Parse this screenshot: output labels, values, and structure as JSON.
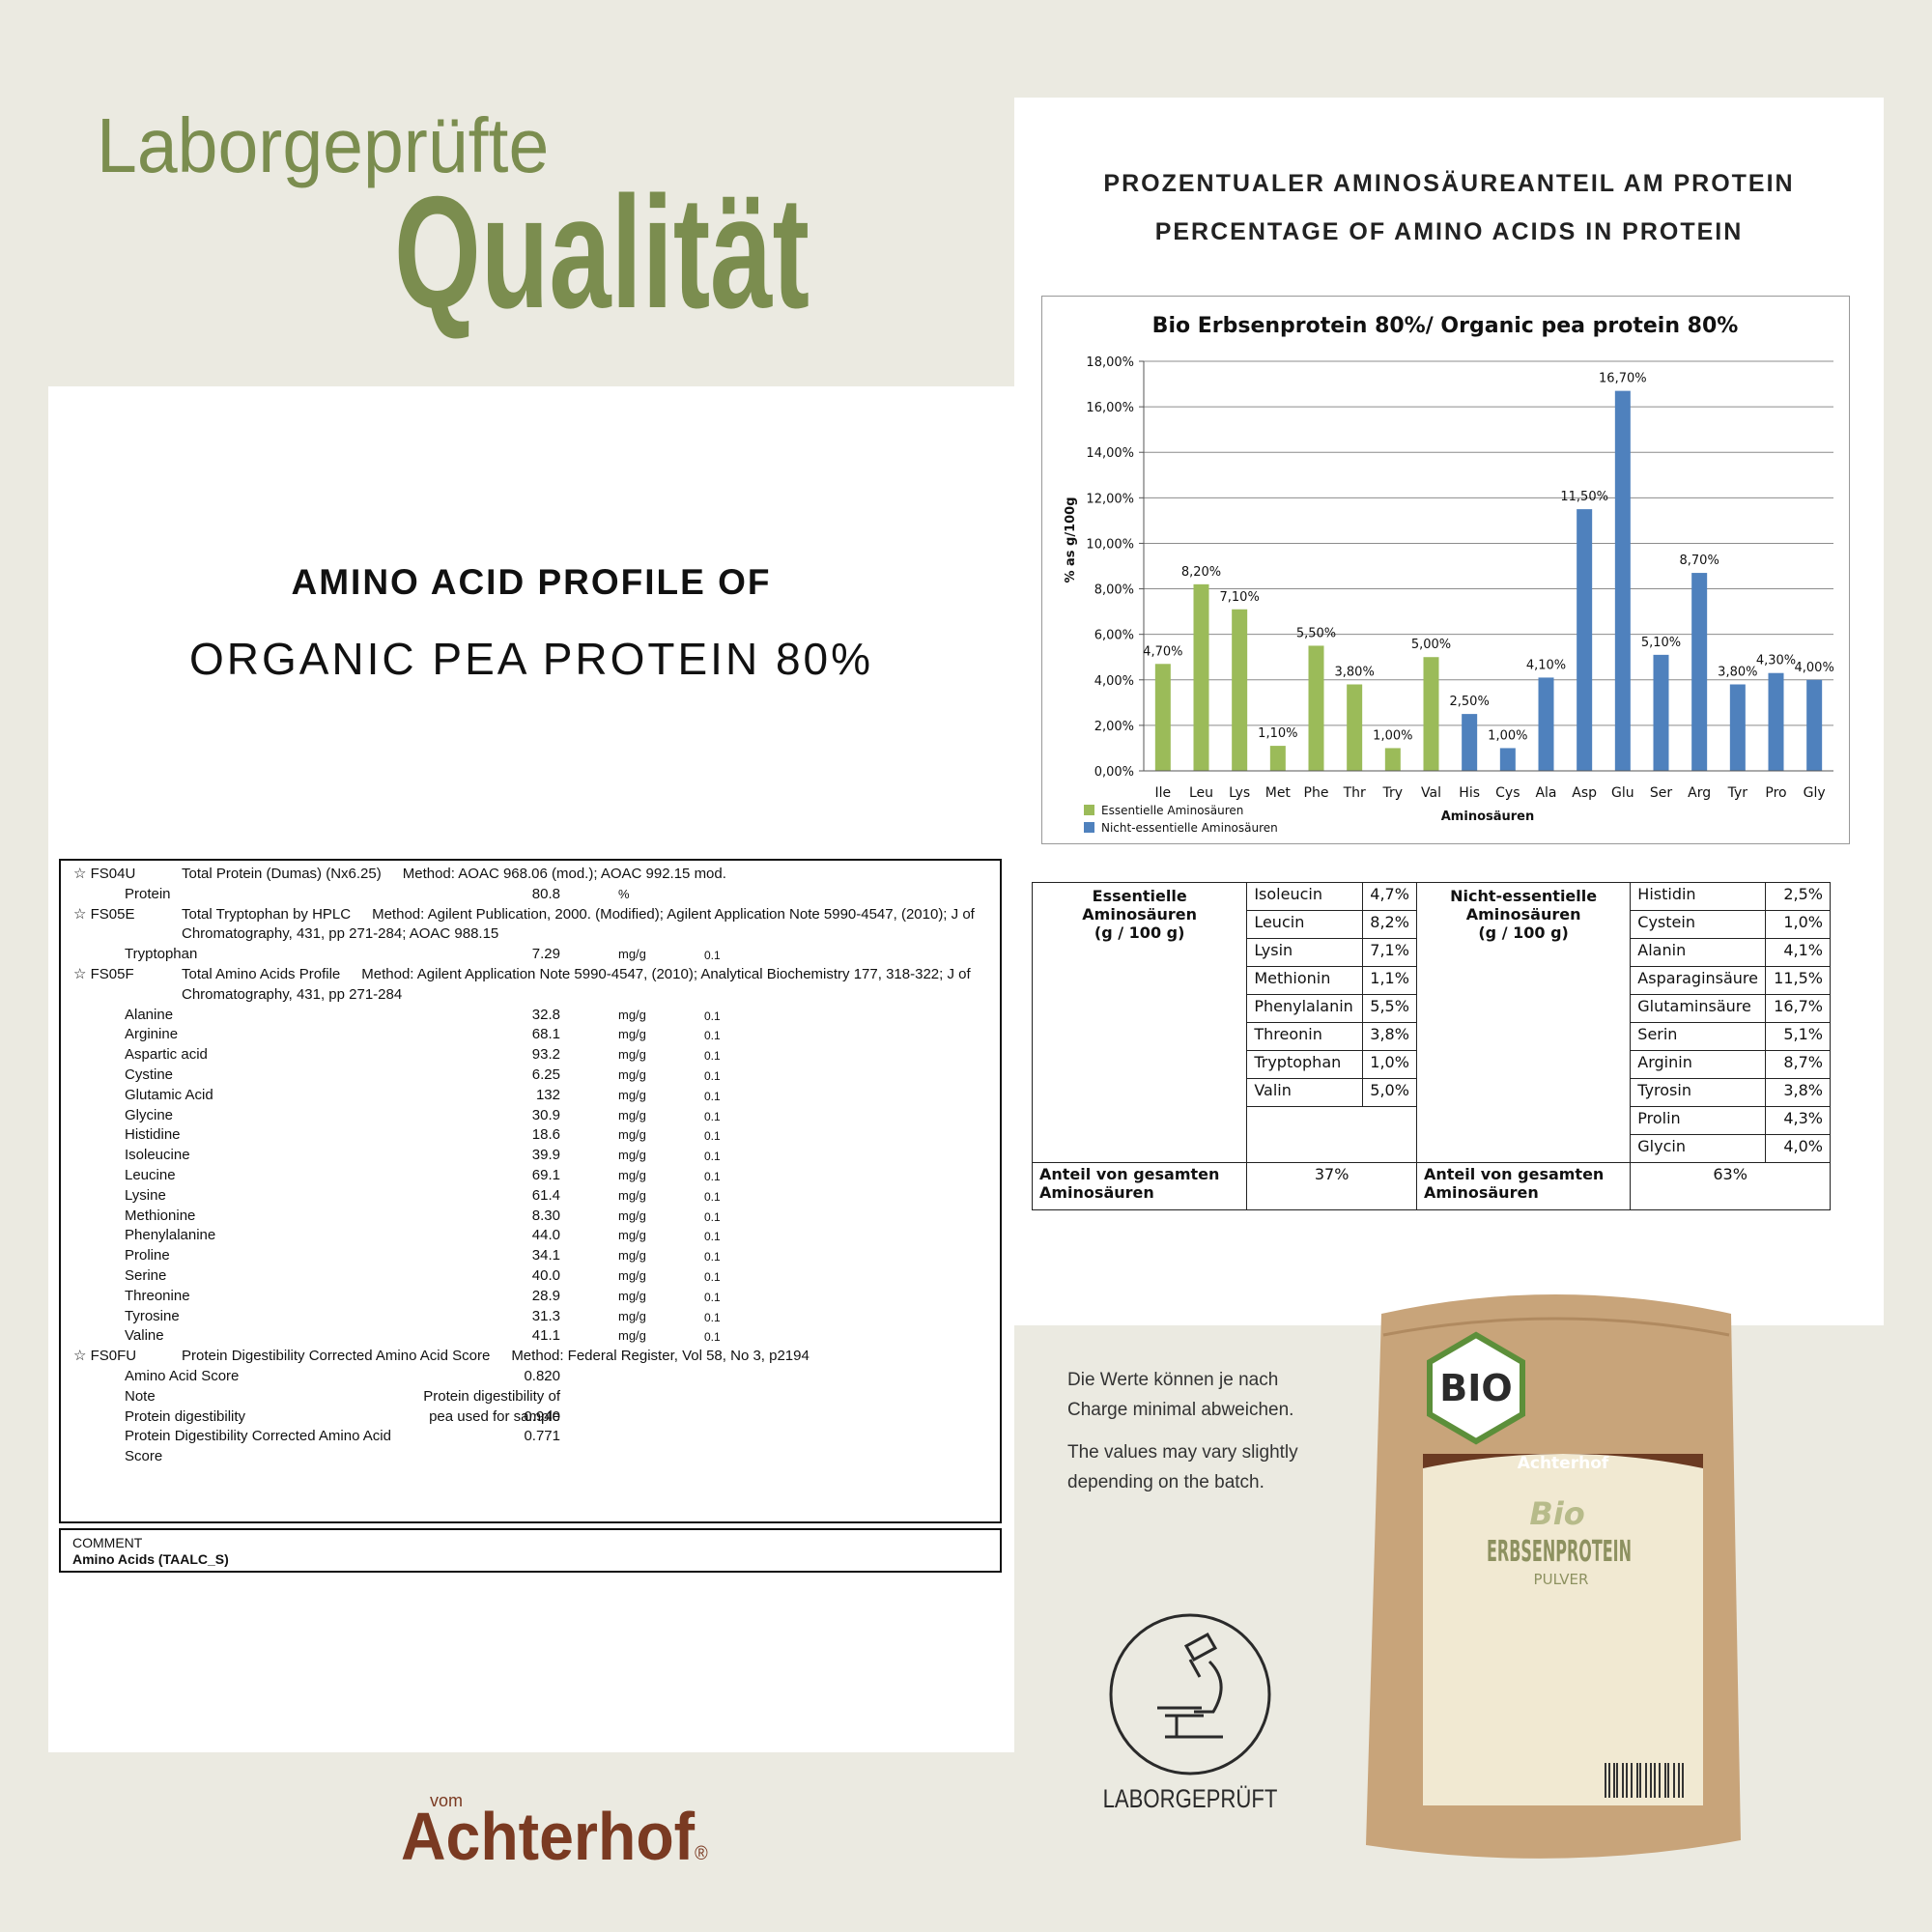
{
  "header": {
    "line1": "Laborgeprüfte",
    "line2": "Qualität"
  },
  "report": {
    "title_line1": "AMINO ACID PROFILE OF",
    "title_line2": "ORGANIC PEA PROTEIN 80%",
    "sections": [
      {
        "code": "☆ FS04U",
        "name": "Total Protein (Dumas) (Nx6.25)",
        "method": "Method: AOAC 968.06 (mod.); AOAC 992.15 mod.",
        "items": [
          {
            "label": "Protein",
            "value": "80.8",
            "unit": "%"
          }
        ]
      },
      {
        "code": "☆ FS05E",
        "name": "Total Tryptophan by HPLC",
        "method": "Method: Agilent Publication, 2000. (Modified); Agilent Application Note 5990-4547, (2010); J of Chromatography, 431, pp 271-284; AOAC 988.15",
        "items": [
          {
            "label": "Tryptophan",
            "value": "7.29",
            "unit": "mg/g",
            "lod": "0.1"
          }
        ]
      },
      {
        "code": "☆ FS05F",
        "name": "Total Amino Acids Profile",
        "method": "Method: Agilent Application Note 5990-4547, (2010); Analytical Biochemistry 177, 318-322; J of Chromatography, 431, pp 271-284",
        "items": [
          {
            "label": "Alanine",
            "value": "32.8",
            "unit": "mg/g",
            "lod": "0.1"
          },
          {
            "label": "Arginine",
            "value": "68.1",
            "unit": "mg/g",
            "lod": "0.1"
          },
          {
            "label": "Aspartic acid",
            "value": "93.2",
            "unit": "mg/g",
            "lod": "0.1"
          },
          {
            "label": "Cystine",
            "value": "6.25",
            "unit": "mg/g",
            "lod": "0.1"
          },
          {
            "label": "Glutamic Acid",
            "value": "132",
            "unit": "mg/g",
            "lod": "0.1"
          },
          {
            "label": "Glycine",
            "value": "30.9",
            "unit": "mg/g",
            "lod": "0.1"
          },
          {
            "label": "Histidine",
            "value": "18.6",
            "unit": "mg/g",
            "lod": "0.1"
          },
          {
            "label": "Isoleucine",
            "value": "39.9",
            "unit": "mg/g",
            "lod": "0.1"
          },
          {
            "label": "Leucine",
            "value": "69.1",
            "unit": "mg/g",
            "lod": "0.1"
          },
          {
            "label": "Lysine",
            "value": "61.4",
            "unit": "mg/g",
            "lod": "0.1"
          },
          {
            "label": "Methionine",
            "value": "8.30",
            "unit": "mg/g",
            "lod": "0.1"
          },
          {
            "label": "Phenylalanine",
            "value": "44.0",
            "unit": "mg/g",
            "lod": "0.1"
          },
          {
            "label": "Proline",
            "value": "34.1",
            "unit": "mg/g",
            "lod": "0.1"
          },
          {
            "label": "Serine",
            "value": "40.0",
            "unit": "mg/g",
            "lod": "0.1"
          },
          {
            "label": "Threonine",
            "value": "28.9",
            "unit": "mg/g",
            "lod": "0.1"
          },
          {
            "label": "Tyrosine",
            "value": "31.3",
            "unit": "mg/g",
            "lod": "0.1"
          },
          {
            "label": "Valine",
            "value": "41.1",
            "unit": "mg/g",
            "lod": "0.1"
          }
        ]
      },
      {
        "code": "☆ FS0FU",
        "name": "Protein Digestibility Corrected Amino Acid Score",
        "method": "Method: Federal Register, Vol 58, No 3, p2194",
        "items": [
          {
            "label": "Amino Acid Score",
            "value": "0.820"
          },
          {
            "label": "Note",
            "value": "Protein digestibility of pea used for sample"
          },
          {
            "label": "Protein digestibility",
            "value": "0.940"
          },
          {
            "label": "Protein Digestibility Corrected Amino Acid Score",
            "value": "0.771"
          }
        ]
      }
    ],
    "comment_label": "COMMENT",
    "comment": "Amino Acids (TAALC_S)"
  },
  "chart_headings": [
    "PROZENTUALER AMINOSÄUREANTEIL AM PROTEIN",
    "PERCENTAGE OF AMINO ACIDS IN PROTEIN"
  ],
  "chart_data": {
    "type": "bar",
    "title": "Bio Erbsenprotein  80%/ Organic pea protein 80%",
    "y_label": "% as g/100g",
    "x_label": "Aminosäuren",
    "categories": [
      "Ile",
      "Leu",
      "Lys",
      "Met",
      "Phe",
      "Thr",
      "Try",
      "Val",
      "His",
      "Cys",
      "Ala",
      "Asp",
      "Glu",
      "Ser",
      "Arg",
      "Tyr",
      "Pro",
      "Gly"
    ],
    "series": [
      {
        "name": "Essentielle Aminosäuren",
        "color": "#9bbb59",
        "values": [
          4.7,
          8.2,
          7.1,
          1.1,
          5.5,
          3.8,
          1.0,
          5.0,
          null,
          null,
          null,
          null,
          null,
          null,
          null,
          null,
          null,
          null
        ],
        "value_labels": [
          "4,70%",
          "8,20%",
          "7,10%",
          "1,10%",
          "5,50%",
          "3,80%",
          "1,00%",
          "5,00%",
          null,
          null,
          null,
          null,
          null,
          null,
          null,
          null,
          null,
          null
        ]
      },
      {
        "name": "Nicht-essentielle Aminosäuren",
        "color": "#4f81bd",
        "values": [
          null,
          null,
          null,
          null,
          null,
          null,
          null,
          null,
          2.5,
          1.0,
          4.1,
          11.5,
          16.7,
          5.1,
          8.7,
          3.8,
          4.3,
          4.0
        ],
        "value_labels": [
          null,
          null,
          null,
          null,
          null,
          null,
          null,
          null,
          "2,50%",
          "1,00%",
          "4,10%",
          "11,50%",
          "16,70%",
          "5,10%",
          "8,70%",
          "3,80%",
          "4,30%",
          "4,00%"
        ]
      }
    ],
    "ylim": [
      0,
      18
    ],
    "yticks": [
      {
        "value": 0,
        "label": "0,00%"
      },
      {
        "value": 2,
        "label": "2,00%"
      },
      {
        "value": 4,
        "label": "4,00%"
      },
      {
        "value": 6,
        "label": "6,00%"
      },
      {
        "value": 8,
        "label": "8,00%"
      },
      {
        "value": 10,
        "label": "10,00%"
      },
      {
        "value": 12,
        "label": "12,00%"
      },
      {
        "value": 14,
        "label": "14,00%"
      },
      {
        "value": 16,
        "label": "16,00%"
      },
      {
        "value": 18,
        "label": "18,00%"
      }
    ],
    "grid": true,
    "legend": "bottom-left"
  },
  "table": {
    "essential": {
      "header": [
        "Essentielle Aminosäuren",
        "(g / 100 g)"
      ],
      "items": [
        [
          "Isoleucin",
          "4,7%"
        ],
        [
          "Leucin",
          "8,2%"
        ],
        [
          "Lysin",
          "7,1%"
        ],
        [
          "Methionin",
          "1,1%"
        ],
        [
          "Phenylalanin",
          "5,5%"
        ],
        [
          "Threonin",
          "3,8%"
        ],
        [
          "Tryptophan",
          "1,0%"
        ],
        [
          "Valin",
          "5,0%"
        ]
      ],
      "total_label": "Anteil von gesamten Aminosäuren",
      "total": "37%"
    },
    "nonessential": {
      "header": [
        "Nicht-essentielle",
        "Aminosäuren",
        "(g / 100 g)"
      ],
      "items": [
        [
          "Histidin",
          "2,5%"
        ],
        [
          "Cystein",
          "1,0%"
        ],
        [
          "Alanin",
          "4,1%"
        ],
        [
          "Asparaginsäure",
          "11,5%"
        ],
        [
          "Glutaminsäure",
          "16,7%"
        ],
        [
          "Serin",
          "5,1%"
        ],
        [
          "Arginin",
          "8,7%"
        ],
        [
          "Tyrosin",
          "3,8%"
        ],
        [
          "Prolin",
          "4,3%"
        ],
        [
          "Glycin",
          "4,0%"
        ]
      ],
      "total_label": "Anteil von gesamten Aminosäuren",
      "total": "63%"
    }
  },
  "note": {
    "de": [
      "Die Werte können je nach",
      "Charge minimal abweichen."
    ],
    "en": [
      "The values may vary slightly",
      "depending on the batch."
    ]
  },
  "badge": "LABORGEPRÜFT",
  "product": {
    "bio": "BIO",
    "brand": "Achterhof",
    "line1": "Bio",
    "line2": "ERBSENPROTEIN",
    "line3": "PULVER"
  },
  "brand": {
    "prefix": "vom",
    "name": "Achterhof",
    "mark": "®"
  }
}
